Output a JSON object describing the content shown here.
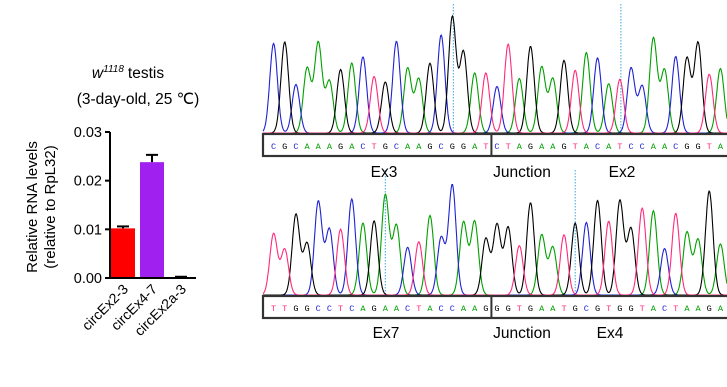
{
  "bar_panel": {
    "genotype": "w",
    "genotype_sup": "1118",
    "tissue": "testis",
    "condition": "(3-day-old, 25 ℃)",
    "ylabel_line1": "Relative RNA levels",
    "ylabel_line2": "(relative to RpL32)"
  },
  "chart_data": {
    "type": "bar",
    "categories": [
      "circEx2-3",
      "circEx4-7",
      "circEx2a-3"
    ],
    "values": [
      0.0102,
      0.0238,
      0.0001
    ],
    "errors": [
      0.0004,
      0.0015,
      0.0001
    ],
    "bar_colors": [
      "#ff0000",
      "#a020f0",
      "#ffffff"
    ],
    "ylim": [
      0,
      0.03
    ],
    "yticks": [
      0,
      0.01,
      0.02,
      0.03
    ],
    "ytick_labels": [
      "0.00",
      "0.01",
      "0.02",
      "0.03"
    ]
  },
  "base_colors": {
    "A": "#00a000",
    "C": "#1e22d4",
    "G": "#000000",
    "T": "#ff2a7a"
  },
  "chromatograms": [
    {
      "sequence": "CGCAAAGACTGCAAGCGGATCTAGAAGTACATCCAACGGTA",
      "region_labels": [
        "Ex3",
        "Junction",
        "Ex2"
      ],
      "junction_after": 20
    },
    {
      "sequence": "TTGGCCTCAGAACTACCAAGGGTGAATGCGTGGTACTAAGA",
      "region_labels": [
        "Ex7",
        "Junction",
        "Ex4"
      ],
      "junction_after": 20
    }
  ]
}
